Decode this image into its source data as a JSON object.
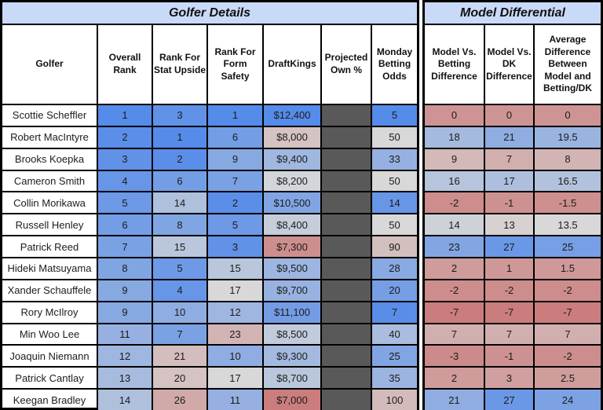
{
  "tables": {
    "left": {
      "title": "Golfer Details",
      "columns": [
        "Golfer",
        "Overall Rank",
        "Rank For Stat Upside",
        "Rank For Form Safety",
        "DraftKings",
        "Projected Own %",
        "Monday Betting Odds"
      ]
    },
    "right": {
      "title": "Model Differential",
      "columns": [
        "Model Vs. Betting Difference",
        "Model Vs. DK Difference",
        "Average Difference Between Model and Betting/DK"
      ]
    }
  },
  "rows": [
    {
      "golfer": "Scottie Scheffler",
      "overall_rank": 1,
      "stat_upside_rank": 3,
      "form_safety_rank": 1,
      "draftkings": "$12,400",
      "projected_own": "",
      "monday_odds": 5,
      "model_vs_betting": 0,
      "model_vs_dk": 0,
      "avg_difference": 0
    },
    {
      "golfer": "Robert MacIntyre",
      "overall_rank": 2,
      "stat_upside_rank": 1,
      "form_safety_rank": 6,
      "draftkings": "$8,000",
      "projected_own": "",
      "monday_odds": 50,
      "model_vs_betting": 18,
      "model_vs_dk": 21,
      "avg_difference": 19.5
    },
    {
      "golfer": "Brooks Koepka",
      "overall_rank": 3,
      "stat_upside_rank": 2,
      "form_safety_rank": 9,
      "draftkings": "$9,400",
      "projected_own": "",
      "monday_odds": 33,
      "model_vs_betting": 9,
      "model_vs_dk": 7,
      "avg_difference": 8
    },
    {
      "golfer": "Cameron Smith",
      "overall_rank": 4,
      "stat_upside_rank": 6,
      "form_safety_rank": 7,
      "draftkings": "$8,200",
      "projected_own": "",
      "monday_odds": 50,
      "model_vs_betting": 16,
      "model_vs_dk": 17,
      "avg_difference": 16.5
    },
    {
      "golfer": "Collin Morikawa",
      "overall_rank": 5,
      "stat_upside_rank": 14,
      "form_safety_rank": 2,
      "draftkings": "$10,500",
      "projected_own": "",
      "monday_odds": 14,
      "model_vs_betting": -2,
      "model_vs_dk": -1,
      "avg_difference": -1.5
    },
    {
      "golfer": "Russell Henley",
      "overall_rank": 6,
      "stat_upside_rank": 8,
      "form_safety_rank": 5,
      "draftkings": "$8,400",
      "projected_own": "",
      "monday_odds": 50,
      "model_vs_betting": 14,
      "model_vs_dk": 13,
      "avg_difference": 13.5
    },
    {
      "golfer": "Patrick Reed",
      "overall_rank": 7,
      "stat_upside_rank": 15,
      "form_safety_rank": 3,
      "draftkings": "$7,300",
      "projected_own": "",
      "monday_odds": 90,
      "model_vs_betting": 23,
      "model_vs_dk": 27,
      "avg_difference": 25
    },
    {
      "golfer": "Hideki Matsuyama",
      "overall_rank": 8,
      "stat_upside_rank": 5,
      "form_safety_rank": 15,
      "draftkings": "$9,500",
      "projected_own": "",
      "monday_odds": 28,
      "model_vs_betting": 2,
      "model_vs_dk": 1,
      "avg_difference": 1.5
    },
    {
      "golfer": "Xander Schauffele",
      "overall_rank": 9,
      "stat_upside_rank": 4,
      "form_safety_rank": 17,
      "draftkings": "$9,700",
      "projected_own": "",
      "monday_odds": 20,
      "model_vs_betting": -2,
      "model_vs_dk": -2,
      "avg_difference": -2
    },
    {
      "golfer": "Rory McIlroy",
      "overall_rank": 9,
      "stat_upside_rank": 10,
      "form_safety_rank": 12,
      "draftkings": "$11,100",
      "projected_own": "",
      "monday_odds": 7,
      "model_vs_betting": -7,
      "model_vs_dk": -7,
      "avg_difference": -7
    },
    {
      "golfer": "Min Woo Lee",
      "overall_rank": 11,
      "stat_upside_rank": 7,
      "form_safety_rank": 23,
      "draftkings": "$8,500",
      "projected_own": "",
      "monday_odds": 40,
      "model_vs_betting": 7,
      "model_vs_dk": 7,
      "avg_difference": 7
    },
    {
      "golfer": "Joaquin Niemann",
      "overall_rank": 12,
      "stat_upside_rank": 21,
      "form_safety_rank": 10,
      "draftkings": "$9,300",
      "projected_own": "",
      "monday_odds": 25,
      "model_vs_betting": -3,
      "model_vs_dk": -1,
      "avg_difference": -2
    },
    {
      "golfer": "Patrick Cantlay",
      "overall_rank": 13,
      "stat_upside_rank": 20,
      "form_safety_rank": 17,
      "draftkings": "$8,700",
      "projected_own": "",
      "monday_odds": 35,
      "model_vs_betting": 2,
      "model_vs_dk": 3,
      "avg_difference": 2.5
    },
    {
      "golfer": "Keegan Bradley",
      "overall_rank": 14,
      "stat_upside_rank": 26,
      "form_safety_rank": 11,
      "draftkings": "$7,000",
      "projected_own": "",
      "monday_odds": 100,
      "model_vs_betting": 21,
      "model_vs_dk": 27,
      "avg_difference": 24
    }
  ],
  "colors": {
    "title_band": "#c9daf8",
    "scale_blue": "#558be9",
    "scale_neutral": "#d8d8d8",
    "scale_red": "#cb7d7d",
    "hidden_cell": "#595959",
    "grid_line": "#000000",
    "header_text": "#111111",
    "cell_text": "#1c1c1c"
  }
}
